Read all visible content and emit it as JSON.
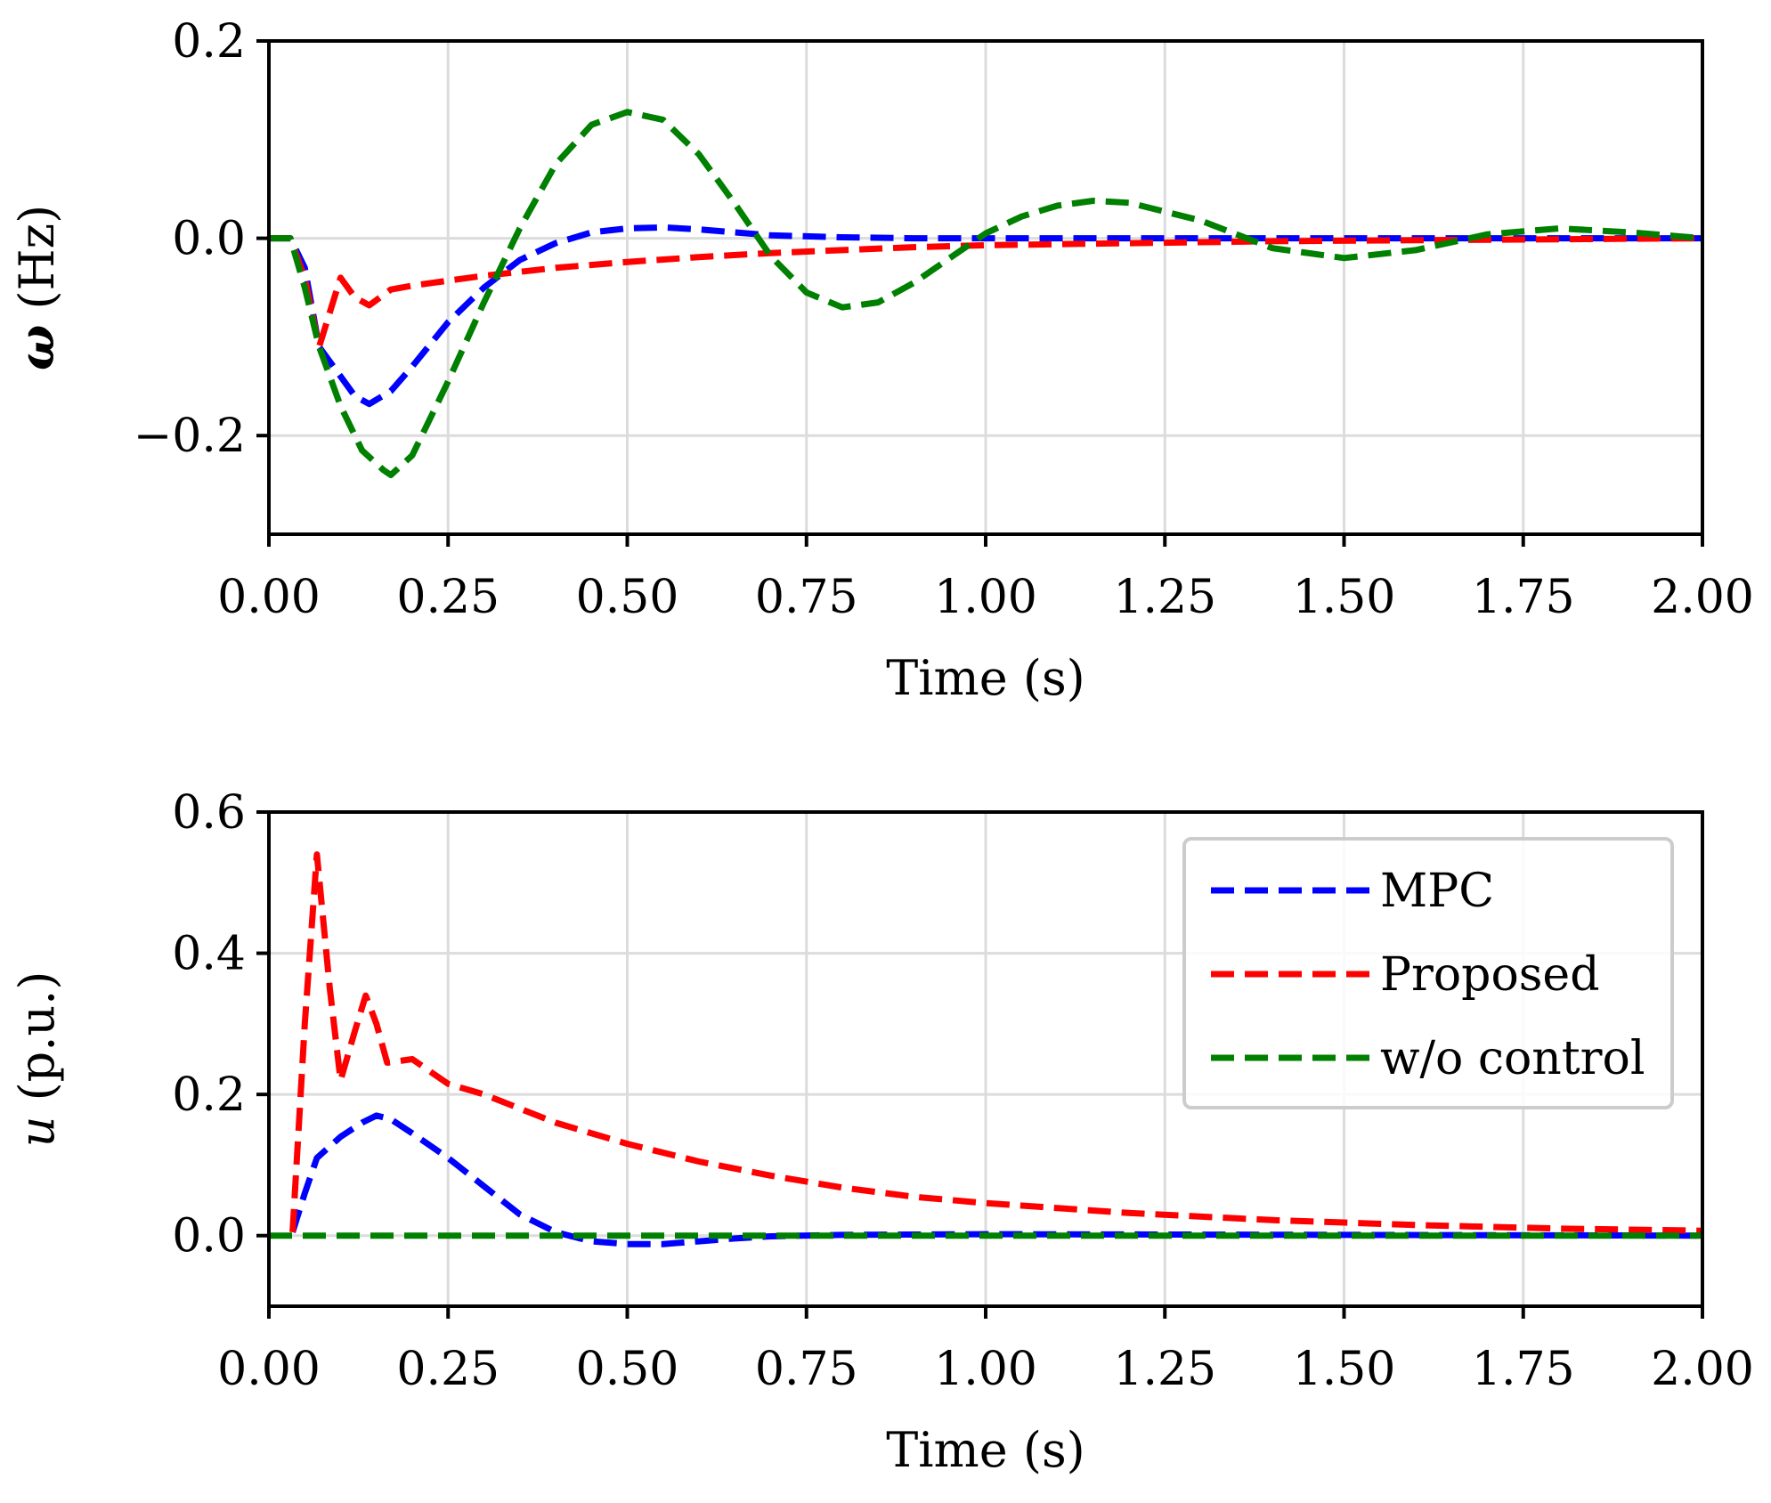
{
  "colors": {
    "MPC": "#0000ff",
    "Proposed": "#ff0000",
    "w/o control": "#008000"
  },
  "legend": {
    "placement": "upper-right",
    "panel_index": 1,
    "entries": [
      {
        "label": "MPC",
        "color": "#0000ff"
      },
      {
        "label": "Proposed",
        "color": "#ff0000"
      },
      {
        "label": "w/o control",
        "color": "#008000"
      }
    ]
  },
  "chart_data": [
    {
      "type": "line",
      "id": "frequency",
      "xlabel": "Time (s)",
      "ylabel_symbol": "ω",
      "ylabel_unit": " (Hz)",
      "xlim": [
        0,
        2
      ],
      "ylim": [
        -0.3,
        0.2
      ],
      "xticks": [
        0,
        0.25,
        0.5,
        0.75,
        1.0,
        1.25,
        1.5,
        1.75,
        2.0
      ],
      "xtick_labels": [
        "0.00",
        "0.25",
        "0.50",
        "0.75",
        "1.00",
        "1.25",
        "1.50",
        "1.75",
        "2.00"
      ],
      "yticks": [
        -0.2,
        0.0,
        0.2
      ],
      "ytick_labels": [
        "−0.2",
        "0.0",
        "0.2"
      ],
      "grid": true,
      "series": [
        {
          "name": "MPC",
          "color": "#0000ff",
          "x": [
            0,
            0.03,
            0.05,
            0.07,
            0.1,
            0.12,
            0.14,
            0.17,
            0.2,
            0.25,
            0.3,
            0.35,
            0.4,
            0.45,
            0.5,
            0.55,
            0.6,
            0.65,
            0.7,
            0.8,
            0.9,
            1.0,
            1.2,
            1.5,
            2.0
          ],
          "y": [
            0,
            0,
            -0.03,
            -0.11,
            -0.14,
            -0.16,
            -0.168,
            -0.155,
            -0.13,
            -0.085,
            -0.05,
            -0.022,
            -0.005,
            0.006,
            0.01,
            0.011,
            0.009,
            0.006,
            0.003,
            0.001,
            0,
            0,
            0,
            0,
            0
          ]
        },
        {
          "name": "Proposed",
          "color": "#ff0000",
          "x": [
            0,
            0.03,
            0.05,
            0.07,
            0.1,
            0.12,
            0.14,
            0.17,
            0.2,
            0.25,
            0.3,
            0.35,
            0.4,
            0.5,
            0.6,
            0.7,
            0.8,
            0.9,
            1.0,
            1.2,
            1.4,
            1.6,
            1.8,
            2.0
          ],
          "y": [
            0,
            0,
            -0.04,
            -0.11,
            -0.04,
            -0.06,
            -0.068,
            -0.052,
            -0.048,
            -0.043,
            -0.038,
            -0.034,
            -0.03,
            -0.024,
            -0.019,
            -0.015,
            -0.012,
            -0.009,
            -0.007,
            -0.005,
            -0.003,
            -0.002,
            -0.001,
            0
          ]
        },
        {
          "name": "w/o control",
          "color": "#008000",
          "x": [
            0,
            0.03,
            0.05,
            0.07,
            0.1,
            0.13,
            0.16,
            0.17,
            0.2,
            0.25,
            0.3,
            0.35,
            0.4,
            0.45,
            0.5,
            0.55,
            0.6,
            0.65,
            0.7,
            0.75,
            0.8,
            0.85,
            0.9,
            0.95,
            1.0,
            1.05,
            1.1,
            1.15,
            1.2,
            1.3,
            1.4,
            1.5,
            1.6,
            1.7,
            1.8,
            1.9,
            2.0
          ],
          "y": [
            0,
            0,
            -0.05,
            -0.11,
            -0.17,
            -0.215,
            -0.235,
            -0.24,
            -0.22,
            -0.145,
            -0.065,
            0.01,
            0.075,
            0.115,
            0.128,
            0.12,
            0.085,
            0.035,
            -0.018,
            -0.055,
            -0.07,
            -0.065,
            -0.045,
            -0.02,
            0.005,
            0.022,
            0.033,
            0.038,
            0.036,
            0.018,
            -0.01,
            -0.02,
            -0.012,
            0.004,
            0.01,
            0.006,
            0
          ]
        }
      ]
    },
    {
      "type": "line",
      "id": "control-input",
      "xlabel": "Time (s)",
      "ylabel_symbol": "u",
      "ylabel_unit": " (p.u.)",
      "xlim": [
        0,
        2
      ],
      "ylim": [
        -0.1,
        0.6
      ],
      "xticks": [
        0,
        0.25,
        0.5,
        0.75,
        1.0,
        1.25,
        1.5,
        1.75,
        2.0
      ],
      "xtick_labels": [
        "0.00",
        "0.25",
        "0.50",
        "0.75",
        "1.00",
        "1.25",
        "1.50",
        "1.75",
        "2.00"
      ],
      "yticks": [
        0.0,
        0.2,
        0.4,
        0.6
      ],
      "ytick_labels": [
        "0.0",
        "0.2",
        "0.4",
        "0.6"
      ],
      "grid": true,
      "series": [
        {
          "name": "MPC",
          "color": "#0000ff",
          "x": [
            0.033,
            0.05,
            0.067,
            0.1,
            0.13,
            0.15,
            0.17,
            0.2,
            0.25,
            0.3,
            0.35,
            0.4,
            0.45,
            0.5,
            0.55,
            0.6,
            0.65,
            0.7,
            0.8,
            1.0,
            1.5,
            2.0
          ],
          "y": [
            0.005,
            0.06,
            0.11,
            0.14,
            0.16,
            0.17,
            0.165,
            0.145,
            0.11,
            0.07,
            0.03,
            0.005,
            -0.008,
            -0.012,
            -0.012,
            -0.008,
            -0.004,
            -0.001,
            0.001,
            0.002,
            0.001,
            0
          ]
        },
        {
          "name": "Proposed",
          "color": "#ff0000",
          "x": [
            0.033,
            0.05,
            0.067,
            0.085,
            0.1,
            0.12,
            0.135,
            0.15,
            0.165,
            0.2,
            0.25,
            0.3,
            0.35,
            0.4,
            0.5,
            0.6,
            0.7,
            0.8,
            0.9,
            1.0,
            1.2,
            1.4,
            1.6,
            1.8,
            2.0
          ],
          "y": [
            0.005,
            0.3,
            0.54,
            0.35,
            0.22,
            0.29,
            0.34,
            0.3,
            0.245,
            0.25,
            0.215,
            0.2,
            0.18,
            0.16,
            0.13,
            0.105,
            0.085,
            0.068,
            0.055,
            0.046,
            0.032,
            0.022,
            0.015,
            0.01,
            0.007
          ]
        },
        {
          "name": "w/o control",
          "color": "#008000",
          "x": [
            0,
            2.0
          ],
          "y": [
            0,
            0
          ]
        }
      ]
    }
  ]
}
